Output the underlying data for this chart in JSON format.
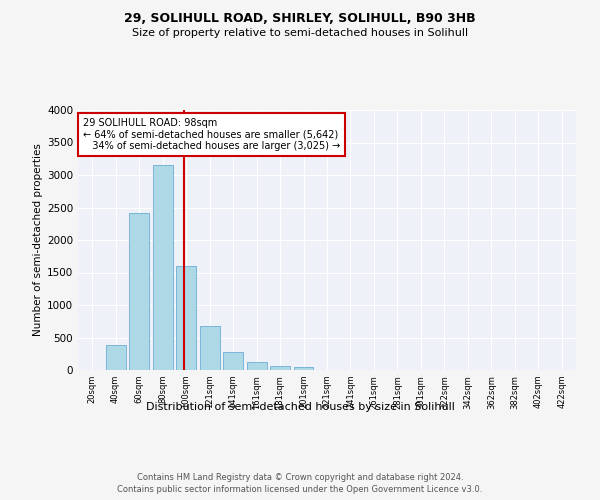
{
  "title1": "29, SOLIHULL ROAD, SHIRLEY, SOLIHULL, B90 3HB",
  "title2": "Size of property relative to semi-detached houses in Solihull",
  "xlabel": "Distribution of semi-detached houses by size in Solihull",
  "ylabel": "Number of semi-detached properties",
  "footer1": "Contains HM Land Registry data © Crown copyright and database right 2024.",
  "footer2": "Contains public sector information licensed under the Open Government Licence v3.0.",
  "bar_labels": [
    "20sqm",
    "40sqm",
    "60sqm",
    "80sqm",
    "100sqm",
    "121sqm",
    "141sqm",
    "161sqm",
    "181sqm",
    "201sqm",
    "221sqm",
    "241sqm",
    "261sqm",
    "281sqm",
    "301sqm",
    "322sqm",
    "342sqm",
    "362sqm",
    "382sqm",
    "402sqm",
    "422sqm"
  ],
  "bar_values": [
    0,
    380,
    2420,
    3150,
    1600,
    680,
    280,
    130,
    60,
    50,
    0,
    0,
    0,
    0,
    0,
    0,
    0,
    0,
    0,
    0,
    0
  ],
  "bar_color": "#add8e6",
  "bar_edge_color": "#6baed6",
  "vline_color": "#cc0000",
  "property_label": "29 SOLIHULL ROAD: 98sqm",
  "smaller_pct": "64%",
  "smaller_count": "5,642",
  "larger_pct": "34%",
  "larger_count": "3,025",
  "ylim": [
    0,
    4000
  ],
  "background_color": "#eef2f8",
  "grid_color": "#ffffff",
  "fig_facecolor": "#f5f5f5"
}
